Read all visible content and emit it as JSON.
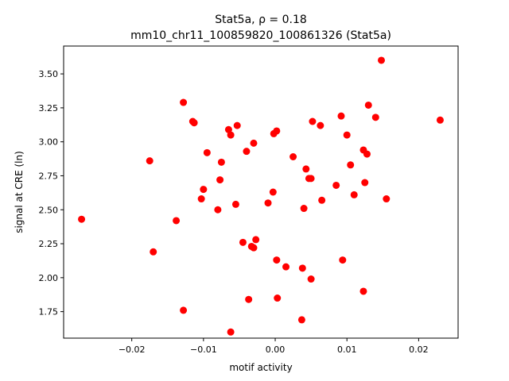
{
  "chart_data": {
    "type": "scatter",
    "title_line1": "Stat5a, ρ = 0.18",
    "title_line2": "mm10_chr11_100859820_100861326 (Stat5a)",
    "xlabel": "motif activity",
    "ylabel": "signal at CRE (ln)",
    "xlim": [
      -0.0295,
      0.0255
    ],
    "ylim": [
      1.555,
      3.705
    ],
    "xticks": [
      -0.02,
      -0.01,
      0.0,
      0.01,
      0.02
    ],
    "xtick_labels": [
      "−0.02",
      "−0.01",
      "0.00",
      "0.01",
      "0.02"
    ],
    "yticks": [
      1.75,
      2.0,
      2.25,
      2.5,
      2.75,
      3.0,
      3.25,
      3.5
    ],
    "ytick_labels": [
      "1.75",
      "2.00",
      "2.25",
      "2.50",
      "2.75",
      "3.00",
      "3.25",
      "3.50"
    ],
    "grid": false,
    "marker_color": "#ff0000",
    "points": [
      [
        -0.027,
        2.43
      ],
      [
        -0.0175,
        2.86
      ],
      [
        -0.017,
        2.19
      ],
      [
        -0.0138,
        2.42
      ],
      [
        -0.0128,
        3.29
      ],
      [
        -0.0128,
        1.76
      ],
      [
        -0.0115,
        3.15
      ],
      [
        -0.0113,
        3.14
      ],
      [
        -0.0103,
        2.58
      ],
      [
        -0.01,
        2.65
      ],
      [
        -0.0095,
        2.92
      ],
      [
        -0.008,
        2.5
      ],
      [
        -0.0077,
        2.72
      ],
      [
        -0.0075,
        2.85
      ],
      [
        -0.0065,
        3.09
      ],
      [
        -0.0062,
        3.05
      ],
      [
        -0.0062,
        1.6
      ],
      [
        -0.0055,
        2.54
      ],
      [
        -0.0053,
        3.12
      ],
      [
        -0.0045,
        2.26
      ],
      [
        -0.004,
        2.93
      ],
      [
        -0.0037,
        1.84
      ],
      [
        -0.0033,
        2.23
      ],
      [
        -0.003,
        2.22
      ],
      [
        -0.003,
        2.99
      ],
      [
        -0.0027,
        2.28
      ],
      [
        -0.001,
        2.55
      ],
      [
        -0.0003,
        2.63
      ],
      [
        -0.0002,
        3.06
      ],
      [
        0.0002,
        3.08
      ],
      [
        0.0002,
        2.13
      ],
      [
        0.0003,
        1.85
      ],
      [
        0.0015,
        2.08
      ],
      [
        0.0025,
        2.89
      ],
      [
        0.0037,
        1.69
      ],
      [
        0.0038,
        2.07
      ],
      [
        0.004,
        2.51
      ],
      [
        0.0043,
        2.8
      ],
      [
        0.0047,
        2.73
      ],
      [
        0.005,
        2.73
      ],
      [
        0.005,
        1.99
      ],
      [
        0.0052,
        3.15
      ],
      [
        0.0063,
        3.12
      ],
      [
        0.0065,
        2.57
      ],
      [
        0.0085,
        2.68
      ],
      [
        0.0092,
        3.19
      ],
      [
        0.0094,
        2.13
      ],
      [
        0.01,
        3.05
      ],
      [
        0.0105,
        2.83
      ],
      [
        0.011,
        2.61
      ],
      [
        0.0123,
        2.94
      ],
      [
        0.0123,
        1.9
      ],
      [
        0.0125,
        2.7
      ],
      [
        0.0128,
        2.91
      ],
      [
        0.013,
        3.27
      ],
      [
        0.014,
        3.18
      ],
      [
        0.0148,
        3.6
      ],
      [
        0.0155,
        2.58
      ],
      [
        0.023,
        3.16
      ]
    ]
  }
}
